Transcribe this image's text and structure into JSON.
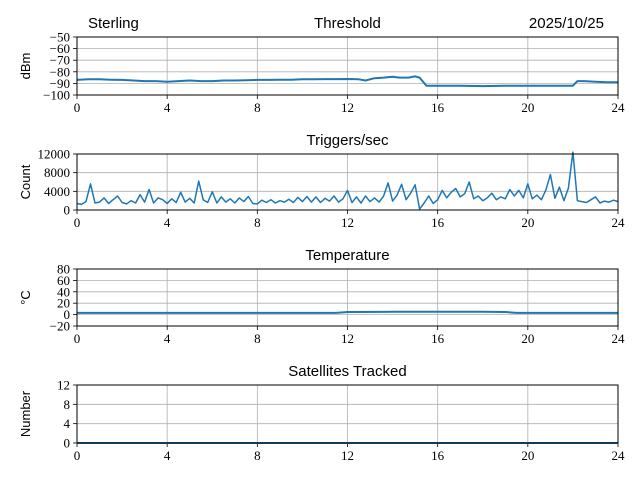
{
  "header": {
    "station": "Sterling",
    "date": "2025/10/25"
  },
  "chart_data": [
    {
      "type": "line",
      "title": "Threshold",
      "ylabel": "dBm",
      "xlim": [
        0,
        24
      ],
      "ylim": [
        -100,
        -50
      ],
      "xticks": [
        0,
        4,
        8,
        12,
        16,
        20,
        24
      ],
      "yticks": [
        -100,
        -90,
        -80,
        -70,
        -60,
        -50
      ],
      "ytick_labels": [
        "−100",
        "−90",
        "−80",
        "−70",
        "−60",
        "−50"
      ],
      "grid": true,
      "color": "#1f77b4",
      "x": [
        0,
        0.5,
        1,
        1.5,
        2,
        2.5,
        3,
        3.5,
        4,
        4.5,
        5,
        5.5,
        6,
        6.5,
        7,
        7.5,
        8,
        8.5,
        9,
        9.5,
        10,
        10.5,
        11,
        11.5,
        12,
        12.5,
        12.8,
        13.2,
        13.6,
        14,
        14.3,
        14.7,
        15,
        15.2,
        15.5,
        16,
        17,
        18,
        19,
        20,
        21,
        21.5,
        22,
        22.2,
        22.5,
        23,
        23.5,
        24
      ],
      "y": [
        -87,
        -86.5,
        -86.5,
        -86.8,
        -87,
        -87.5,
        -88,
        -88,
        -88.5,
        -88,
        -87.5,
        -88,
        -88,
        -87.5,
        -87.5,
        -87.2,
        -87,
        -87,
        -86.8,
        -86.8,
        -86.5,
        -86.5,
        -86.3,
        -86.3,
        -86.2,
        -86.5,
        -87.5,
        -85.5,
        -85,
        -84.2,
        -85,
        -85,
        -84,
        -85,
        -92,
        -92,
        -92,
        -92.3,
        -92,
        -92,
        -92,
        -92,
        -92,
        -88,
        -88,
        -88.5,
        -89,
        -89
      ]
    },
    {
      "type": "line",
      "title": "Triggers/sec",
      "ylabel": "Count",
      "xlim": [
        0,
        24
      ],
      "ylim": [
        0,
        12000
      ],
      "xticks": [
        0,
        4,
        8,
        12,
        16,
        20,
        24
      ],
      "yticks": [
        0,
        4000,
        8000,
        12000
      ],
      "ytick_labels": [
        "0",
        "4000",
        "8000",
        "12000"
      ],
      "grid": true,
      "color": "#1f77b4",
      "x_step": 0.2,
      "y": [
        1400,
        1200,
        1800,
        5600,
        1500,
        1700,
        2600,
        1400,
        2200,
        3000,
        1600,
        1300,
        2000,
        1500,
        3300,
        1700,
        4400,
        1500,
        2600,
        2200,
        1400,
        2400,
        1600,
        3800,
        1700,
        2500,
        1500,
        6200,
        2200,
        1600,
        3900,
        1500,
        2800,
        1700,
        2400,
        1500,
        2600,
        1800,
        2900,
        1400,
        1300,
        2100,
        1600,
        2200,
        1500,
        2000,
        1700,
        2300,
        1600,
        2700,
        1800,
        2900,
        1700,
        2800,
        1600,
        2500,
        1900,
        3000,
        1700,
        2400,
        4200,
        1600,
        2800,
        1500,
        3000,
        1800,
        2600,
        1700,
        3000,
        5800,
        1900,
        3200,
        5500,
        2200,
        3600,
        5400,
        200,
        1500,
        3000,
        1400,
        2200,
        4200,
        2600,
        3800,
        4600,
        2800,
        3500,
        6000,
        2400,
        3000,
        2000,
        2600,
        3600,
        2200,
        2800,
        2400,
        4400,
        3000,
        4200,
        2600,
        5600,
        2400,
        3200,
        2200,
        4300,
        7600,
        2500,
        4900,
        2000,
        4700,
        12400,
        2000,
        1800,
        1600,
        2200,
        2800,
        1500,
        1900,
        1700,
        2100,
        1800
      ]
    },
    {
      "type": "line",
      "title": "Temperature",
      "ylabel": "°C",
      "xlim": [
        0,
        24
      ],
      "ylim": [
        -20,
        80
      ],
      "xticks": [
        0,
        4,
        8,
        12,
        16,
        20,
        24
      ],
      "yticks": [
        -20,
        0,
        20,
        40,
        60,
        80
      ],
      "ytick_labels": [
        "−20",
        "0",
        "20",
        "40",
        "60",
        "80"
      ],
      "grid": true,
      "color": "#1f77b4",
      "x": [
        0,
        4,
        8,
        11.5,
        12,
        14,
        16,
        18,
        19,
        19.5,
        20,
        24
      ],
      "y": [
        3,
        3,
        3,
        3,
        4.5,
        5,
        5,
        5,
        4.5,
        3,
        3,
        3
      ]
    },
    {
      "type": "line",
      "title": "Satellites Tracked",
      "ylabel": "Number",
      "xlim": [
        0,
        24
      ],
      "ylim": [
        0,
        12
      ],
      "xticks": [
        0,
        4,
        8,
        12,
        16,
        20,
        24
      ],
      "yticks": [
        0,
        4,
        8,
        12
      ],
      "ytick_labels": [
        "0",
        "4",
        "8",
        "12"
      ],
      "grid": true,
      "color": "#1f77b4",
      "x": [
        0,
        24
      ],
      "y": [
        0,
        0
      ]
    }
  ]
}
